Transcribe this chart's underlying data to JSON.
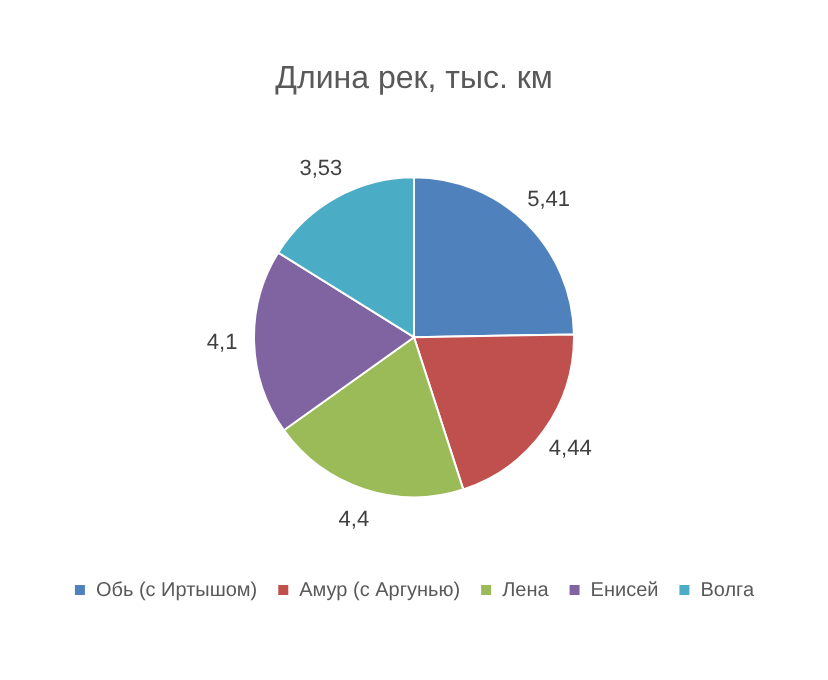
{
  "chart_data": {
    "type": "pie",
    "title": "Длина рек, тыс. км",
    "categories": [
      "Обь (с Иртышом)",
      "Амур (с Аргунью)",
      "Лена",
      "Енисей",
      "Волга"
    ],
    "values": [
      5.41,
      4.44,
      4.4,
      4.1,
      3.53
    ],
    "value_labels": [
      "5,41",
      "4,44",
      "4,4",
      "4,1",
      "3,53"
    ],
    "colors": [
      "#4f81bd",
      "#c0504d",
      "#9bbb59",
      "#8064a2",
      "#4bacc6"
    ],
    "legend": "bottom"
  }
}
